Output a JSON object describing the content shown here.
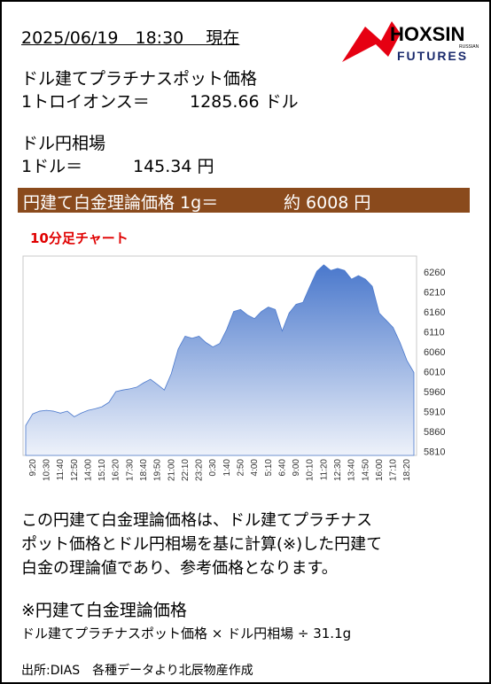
{
  "header": {
    "date": "2025/06/19　18:30　 現在"
  },
  "logo": {
    "brand": "HOXSIN",
    "sub": "RUSSIAN",
    "line": "FUTURES"
  },
  "platinum": {
    "label": "ドル建てプラチナスポット価格",
    "unit": "1トロイオンス＝",
    "value": "1285.66 ドル"
  },
  "fx": {
    "label": "ドル円相場",
    "unit": "1ドル＝",
    "value": "145.34 円"
  },
  "banner": {
    "label": "円建て白金理論価格 1g＝",
    "value": "約 6008 円"
  },
  "chart_data": {
    "type": "area",
    "title": "10分足チャート",
    "categories": [
      null,
      "9:20",
      null,
      "10:30",
      null,
      "11:40",
      null,
      "12:50",
      null,
      "14:00",
      null,
      "15:10",
      null,
      "16:20",
      null,
      "17:30",
      null,
      "18:40",
      null,
      "19:50",
      null,
      "21:00",
      null,
      "22:10",
      null,
      "23:20",
      null,
      "0:30",
      null,
      "1:40",
      null,
      "2:50",
      null,
      "4:00",
      null,
      "5:10",
      null,
      "6:40",
      null,
      "9:00",
      null,
      "10:10",
      null,
      "11:20",
      null,
      "12:30",
      null,
      "13:40",
      null,
      "14:50",
      null,
      "16:00",
      null,
      "17:10",
      null,
      "18:20",
      null
    ],
    "values": [
      5875,
      5904,
      5911,
      5913,
      5911,
      5906,
      5911,
      5897,
      5906,
      5913,
      5917,
      5922,
      5933,
      5960,
      5964,
      5967,
      5971,
      5982,
      5991,
      5978,
      5964,
      6005,
      6067,
      6099,
      6094,
      6099,
      6083,
      6072,
      6081,
      6116,
      6161,
      6166,
      6152,
      6143,
      6161,
      6172,
      6166,
      6112,
      6157,
      6179,
      6184,
      6224,
      6262,
      6278,
      6264,
      6269,
      6264,
      6242,
      6251,
      6242,
      6224,
      6157,
      6139,
      6121,
      6083,
      6038,
      6008
    ],
    "color": "#4a78cc",
    "ylim": [
      5800,
      6300
    ],
    "yticks": [
      5810,
      5860,
      5910,
      5960,
      6010,
      6060,
      6110,
      6160,
      6210,
      6260
    ],
    "grid": false
  },
  "description": {
    "lines": [
      "この円建て白金理論価格は、ドル建てプラチナス",
      "ポット価格とドル円相場を基に計算(※)した円建て",
      "白金の理論値であり、参考価格となります。"
    ]
  },
  "formula": {
    "title": "※円建て白金理論価格",
    "text": "ドル建てプラチナスポット価格 × ドル円相場 ÷ 31.1g"
  },
  "source": "出所:DIAS　各種データより北辰物産作成"
}
